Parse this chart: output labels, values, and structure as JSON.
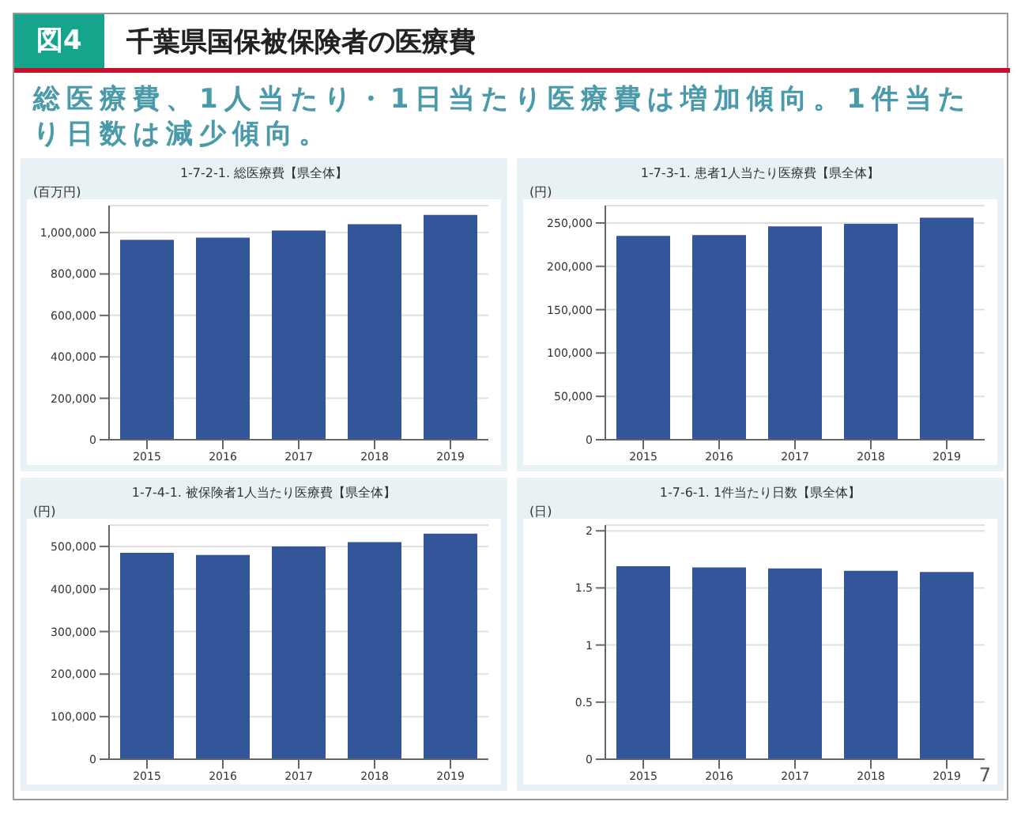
{
  "chart_data": [
    {
      "type": "other",
      "title": "千葉県国保被保険者の医療費",
      "annotations": [
        "図4",
        "総医療費、1人当たり・1日当たり医療費は増加傾向。1件当たり日数は減少傾向。",
        "7"
      ]
    },
    {
      "type": "bar",
      "title": "1-7-2-1. 総医療費【県全体】",
      "ylabel": "(百万円)",
      "categories": [
        "2015",
        "2016",
        "2017",
        "2018",
        "2019"
      ],
      "values": [
        965000,
        975000,
        1010000,
        1040000,
        1085000
      ],
      "color": "#33559a",
      "ylim": [
        0,
        1130000
      ],
      "yticks": [
        0,
        {
          "value": 200000,
          "label": "200,000"
        },
        {
          "value": 400000,
          "label": "400,000"
        },
        {
          "value": 600000,
          "label": "600,000"
        },
        {
          "value": 800000,
          "label": "800,000"
        },
        {
          "value": 1000000,
          "label": "1,000,000"
        }
      ],
      "grid": "y"
    },
    {
      "type": "bar",
      "title": "1-7-3-1. 患者1人当たり医療費【県全体】",
      "ylabel": "(円)",
      "categories": [
        "2015",
        "2016",
        "2017",
        "2018",
        "2019"
      ],
      "values": [
        235000,
        236000,
        246000,
        249000,
        256000
      ],
      "color": "#33559a",
      "ylim": [
        0,
        270000
      ],
      "yticks": [
        0,
        {
          "value": 50000,
          "label": "50,000"
        },
        {
          "value": 100000,
          "label": "100,000"
        },
        {
          "value": 150000,
          "label": "150,000"
        },
        {
          "value": 200000,
          "label": "200,000"
        },
        {
          "value": 250000,
          "label": "250,000"
        }
      ],
      "grid": "y"
    },
    {
      "type": "bar",
      "title": "1-7-4-1. 被保険者1人当たり医療費【県全体】",
      "ylabel": "(円)",
      "categories": [
        "2015",
        "2016",
        "2017",
        "2018",
        "2019"
      ],
      "values": [
        485000,
        480000,
        500000,
        510000,
        530000
      ],
      "color": "#33559a",
      "ylim": [
        0,
        550000
      ],
      "yticks": [
        0,
        {
          "value": 100000,
          "label": "100,000"
        },
        {
          "value": 200000,
          "label": "200,000"
        },
        {
          "value": 300000,
          "label": "300,000"
        },
        {
          "value": 400000,
          "label": "400,000"
        },
        {
          "value": 500000,
          "label": "500,000"
        }
      ],
      "grid": "y"
    },
    {
      "type": "bar",
      "title": "1-7-6-1. 1件当たり日数【県全体】",
      "ylabel": "(日)",
      "categories": [
        "2015",
        "2016",
        "2017",
        "2018",
        "2019"
      ],
      "values": [
        1.69,
        1.68,
        1.67,
        1.65,
        1.64
      ],
      "color": "#33559a",
      "ylim": [
        0,
        2.05
      ],
      "yticks": [
        0,
        0.5,
        1,
        1.5,
        2
      ],
      "grid": "y"
    }
  ]
}
